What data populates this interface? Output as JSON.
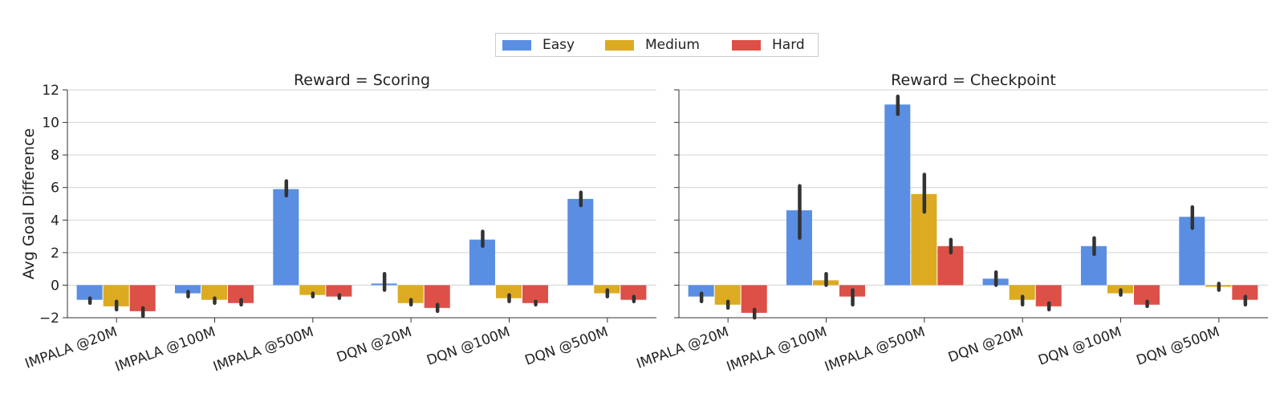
{
  "legend": [
    {
      "name": "Easy",
      "color": "#5a8ee3"
    },
    {
      "name": "Medium",
      "color": "#dcab22"
    },
    {
      "name": "Hard",
      "color": "#dc5048"
    }
  ],
  "chart_data": [
    {
      "type": "bar",
      "title": "Reward = Scoring",
      "ylabel": "Avg Goal Difference",
      "ylim": [
        -2,
        12
      ],
      "yticks": [
        -2,
        0,
        2,
        4,
        6,
        8,
        10,
        12
      ],
      "categories": [
        "IMPALA @20M",
        "IMPALA @100M",
        "IMPALA @500M",
        "DQN @20M",
        "DQN @100M",
        "DQN @500M"
      ],
      "series": [
        {
          "name": "Easy",
          "values": [
            -0.9,
            -0.5,
            5.9,
            0.1,
            2.8,
            5.3
          ],
          "err": [
            [
              -1.1,
              -0.8
            ],
            [
              -0.7,
              -0.4
            ],
            [
              5.5,
              6.4
            ],
            [
              -0.3,
              0.7
            ],
            [
              2.4,
              3.3
            ],
            [
              4.9,
              5.7
            ]
          ]
        },
        {
          "name": "Medium",
          "values": [
            -1.3,
            -0.9,
            -0.6,
            -1.1,
            -0.8,
            -0.5
          ],
          "err": [
            [
              -1.5,
              -1.0
            ],
            [
              -1.1,
              -0.8
            ],
            [
              -0.7,
              -0.5
            ],
            [
              -1.2,
              -0.9
            ],
            [
              -1.0,
              -0.6
            ],
            [
              -0.7,
              -0.3
            ]
          ]
        },
        {
          "name": "Hard",
          "values": [
            -1.6,
            -1.1,
            -0.7,
            -1.4,
            -1.1,
            -0.9
          ],
          "err": [
            [
              -1.9,
              -1.4
            ],
            [
              -1.2,
              -0.9
            ],
            [
              -0.8,
              -0.6
            ],
            [
              -1.6,
              -1.2
            ],
            [
              -1.2,
              -1.0
            ],
            [
              -1.0,
              -0.7
            ]
          ]
        }
      ]
    },
    {
      "type": "bar",
      "title": "Reward = Checkpoint",
      "ylabel": "",
      "ylim": [
        -2,
        12
      ],
      "yticks": [
        -2,
        0,
        2,
        4,
        6,
        8,
        10,
        12
      ],
      "categories": [
        "IMPALA @20M",
        "IMPALA @100M",
        "IMPALA @500M",
        "DQN @20M",
        "DQN @100M",
        "DQN @500M"
      ],
      "series": [
        {
          "name": "Easy",
          "values": [
            -0.7,
            4.6,
            11.1,
            0.4,
            2.4,
            4.2
          ],
          "err": [
            [
              -1.0,
              -0.5
            ],
            [
              2.9,
              6.1
            ],
            [
              10.5,
              11.6
            ],
            [
              0.0,
              0.8
            ],
            [
              1.9,
              2.9
            ],
            [
              3.5,
              4.8
            ]
          ]
        },
        {
          "name": "Medium",
          "values": [
            -1.2,
            0.3,
            5.6,
            -0.9,
            -0.5,
            -0.1
          ],
          "err": [
            [
              -1.4,
              -1.0
            ],
            [
              0.0,
              0.7
            ],
            [
              4.5,
              6.8
            ],
            [
              -1.2,
              -0.7
            ],
            [
              -0.6,
              -0.3
            ],
            [
              -0.3,
              0.1
            ]
          ]
        },
        {
          "name": "Hard",
          "values": [
            -1.7,
            -0.7,
            2.4,
            -1.3,
            -1.2,
            -0.9
          ],
          "err": [
            [
              -2.0,
              -1.5
            ],
            [
              -1.2,
              -0.3
            ],
            [
              2.0,
              2.8
            ],
            [
              -1.5,
              -1.1
            ],
            [
              -1.3,
              -1.0
            ],
            [
              -1.2,
              -0.7
            ]
          ]
        }
      ]
    }
  ]
}
